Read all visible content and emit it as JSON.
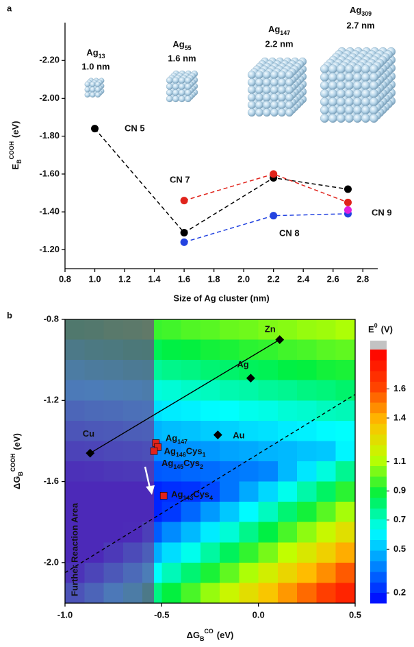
{
  "chart_data": [
    {
      "type": "line",
      "panel_label": "a",
      "x_label": "Size of Ag cluster (nm)",
      "y_label": {
        "main": "E",
        "sub": "B",
        "sup": "COOH",
        "unit": "(eV)"
      },
      "xlim": [
        0.8,
        2.9
      ],
      "ylim": [
        -1.1,
        -2.4
      ],
      "xticks": [
        0.8,
        {
          "value": 1.0,
          "label": "1.0"
        },
        1.2,
        1.4,
        1.6,
        1.8,
        {
          "value": 2.0,
          "label": "2.0"
        },
        2.2,
        2.4,
        2.6,
        2.8
      ],
      "yticks": [
        {
          "value": -1.2,
          "label": "-1.20"
        },
        {
          "value": -1.4,
          "label": "-1.40"
        },
        {
          "value": -1.6,
          "label": "-1.60"
        },
        {
          "value": -1.8,
          "label": "-1.80"
        },
        {
          "value": -2.0,
          "label": "-2.00"
        },
        {
          "value": -2.2,
          "label": "-2.20"
        }
      ],
      "line_style": "dashed",
      "clusters": [
        {
          "name": "Ag",
          "sub": "13",
          "size_label": "1.0 nm"
        },
        {
          "name": "Ag",
          "sub": "55",
          "size_label": "1.6 nm"
        },
        {
          "name": "Ag",
          "sub": "147",
          "size_label": "2.2 nm"
        },
        {
          "name": "Ag",
          "sub": "309",
          "size_label": "2.7 nm"
        }
      ],
      "series": [
        {
          "name": "CN 5",
          "color": "#000000",
          "x": [
            1.0,
            1.6,
            2.2,
            2.7
          ],
          "values": [
            -1.84,
            -1.29,
            -1.58,
            -1.52
          ]
        },
        {
          "name": "CN 7",
          "color": "#e0231b",
          "x": [
            1.6,
            2.2,
            2.7
          ],
          "values": [
            -1.46,
            -1.6,
            -1.45
          ]
        },
        {
          "name": "CN 8",
          "color": "#2343e0",
          "x": [
            1.6,
            2.2,
            2.7
          ],
          "values": [
            -1.24,
            -1.38,
            -1.39
          ]
        },
        {
          "name": "CN 9",
          "color": "#e020e0",
          "x": [
            2.7
          ],
          "values": [
            -1.41
          ]
        }
      ]
    },
    {
      "type": "heatmap",
      "panel_label": "b",
      "x_label": {
        "main": "ΔG",
        "sub": "B",
        "sup": "CO",
        "unit": "(eV)"
      },
      "y_label": {
        "main": "ΔG",
        "sub": "B",
        "sup": "COOH",
        "unit": "(eV)"
      },
      "xlim": [
        -1.0,
        0.5
      ],
      "ylim": [
        -2.2,
        -0.8
      ],
      "xticks": [
        {
          "value": -1.0,
          "label": "-1.0"
        },
        -0.5,
        {
          "value": 0.0,
          "label": "0.0"
        },
        0.5
      ],
      "yticks": [
        {
          "value": -2.0,
          "label": "-2.0"
        },
        -1.6,
        -1.2,
        -0.8
      ],
      "heatmap": {
        "x": [
          -0.95,
          -0.85,
          -0.75,
          -0.65,
          -0.55,
          -0.45,
          -0.35,
          -0.25,
          -0.15,
          -0.05,
          0.05,
          0.15,
          0.25,
          0.35,
          0.45
        ],
        "y": [
          -0.85,
          -0.95,
          -1.05,
          -1.15,
          -1.25,
          -1.35,
          -1.45,
          -1.55,
          -1.65,
          -1.75,
          -1.85,
          -1.95,
          -2.05,
          -2.15
        ],
        "z": [
          [
            0.89,
            0.9,
            0.92,
            0.93,
            0.95,
            0.96,
            0.98,
            0.99,
            1.01,
            1.02,
            1.04,
            1.05,
            1.07,
            1.08,
            1.1
          ],
          [
            0.79,
            0.81,
            0.82,
            0.84,
            0.85,
            0.87,
            0.88,
            0.9,
            0.91,
            0.93,
            0.94,
            0.96,
            0.97,
            0.99,
            1.0
          ],
          [
            0.7,
            0.72,
            0.73,
            0.75,
            0.76,
            0.78,
            0.79,
            0.81,
            0.82,
            0.84,
            0.85,
            0.87,
            0.88,
            0.9,
            0.91
          ],
          [
            0.61,
            0.62,
            0.64,
            0.65,
            0.67,
            0.68,
            0.7,
            0.71,
            0.73,
            0.74,
            0.76,
            0.77,
            0.79,
            0.8,
            0.82
          ],
          [
            0.51,
            0.53,
            0.54,
            0.56,
            0.57,
            0.59,
            0.6,
            0.62,
            0.63,
            0.65,
            0.66,
            0.68,
            0.69,
            0.71,
            0.72
          ],
          [
            0.42,
            0.44,
            0.45,
            0.47,
            0.48,
            0.5,
            0.51,
            0.53,
            0.54,
            0.56,
            0.57,
            0.59,
            0.6,
            0.62,
            0.63
          ],
          [
            0.33,
            0.34,
            0.36,
            0.37,
            0.39,
            0.4,
            0.42,
            0.43,
            0.45,
            0.46,
            0.48,
            0.49,
            0.51,
            0.52,
            0.61
          ],
          [
            0.24,
            0.25,
            0.27,
            0.28,
            0.3,
            0.31,
            0.33,
            0.34,
            0.36,
            0.37,
            0.39,
            0.49,
            0.58,
            0.67,
            0.77
          ],
          [
            0.2,
            0.2,
            0.2,
            0.2,
            0.2,
            0.22,
            0.23,
            0.27,
            0.36,
            0.46,
            0.55,
            0.65,
            0.74,
            0.83,
            0.93
          ],
          [
            0.2,
            0.2,
            0.2,
            0.2,
            0.2,
            0.24,
            0.33,
            0.43,
            0.52,
            0.62,
            0.71,
            0.81,
            0.9,
            0.99,
            1.09
          ],
          [
            0.2,
            0.2,
            0.2,
            0.21,
            0.31,
            0.4,
            0.49,
            0.59,
            0.68,
            0.78,
            0.87,
            0.97,
            1.06,
            1.15,
            1.25
          ],
          [
            0.2,
            0.2,
            0.28,
            0.37,
            0.47,
            0.56,
            0.65,
            0.75,
            0.84,
            0.94,
            1.03,
            1.13,
            1.22,
            1.31,
            1.41
          ],
          [
            0.25,
            0.34,
            0.44,
            0.53,
            0.63,
            0.72,
            0.81,
            0.91,
            1.0,
            1.1,
            1.19,
            1.29,
            1.38,
            1.47,
            1.57
          ],
          [
            0.41,
            0.5,
            0.6,
            0.69,
            0.79,
            0.88,
            0.97,
            1.07,
            1.16,
            1.26,
            1.35,
            1.45,
            1.54,
            1.63,
            1.73
          ]
        ]
      },
      "colorbar": {
        "title": {
          "main": "E",
          "sup": "0",
          "unit": "(V)"
        },
        "clim": [
          0.13,
          1.87
        ],
        "ticks": [
          0.2,
          0.5,
          0.7,
          0.9,
          1.1,
          1.4,
          1.6
        ],
        "colors": [
          "#0000ff",
          "#0080ff",
          "#00ffff",
          "#00f040",
          "#c0ff00",
          "#ffc000",
          "#ff4000",
          "#ff0000"
        ],
        "over_color": "#c3c3c3"
      },
      "shaded_region": {
        "label": "Further Reaction Area",
        "xlim": [
          -1.0,
          -0.54
        ],
        "color": "#7a2d8c"
      },
      "lines": [
        {
          "style": "solid",
          "color": "#000000",
          "x": [
            -0.87,
            0.11
          ],
          "values": [
            -1.46,
            -0.9
          ]
        },
        {
          "style": "dashed",
          "color": "#000000",
          "x": [
            -1.0,
            0.5
          ],
          "values": [
            -2.05,
            -1.17
          ]
        }
      ],
      "series": [
        {
          "marker": "diamond",
          "color": "#000000",
          "label_color": "#eeeeee",
          "labels": [
            [
              "Cu"
            ],
            [
              "Ag"
            ],
            [
              "Zn"
            ],
            [
              "Au"
            ]
          ],
          "x": [
            -0.87,
            -0.04,
            0.11,
            -0.21
          ],
          "values": [
            -1.46,
            -1.09,
            -0.9,
            -1.37
          ]
        },
        {
          "marker": "square",
          "color": "#e0231b",
          "label_color": "#ffffff",
          "labels": [
            [
              "Ag",
              "147"
            ],
            [
              "Ag",
              "146",
              "Cys",
              "1"
            ],
            [
              "Ag",
              "145",
              "Cys",
              "2"
            ],
            [
              "Ag",
              "143",
              "Cys",
              "4"
            ]
          ],
          "x": [
            -0.53,
            -0.52,
            -0.54,
            -0.49
          ],
          "values": [
            -1.41,
            -1.43,
            -1.45,
            -1.67
          ]
        }
      ]
    }
  ]
}
